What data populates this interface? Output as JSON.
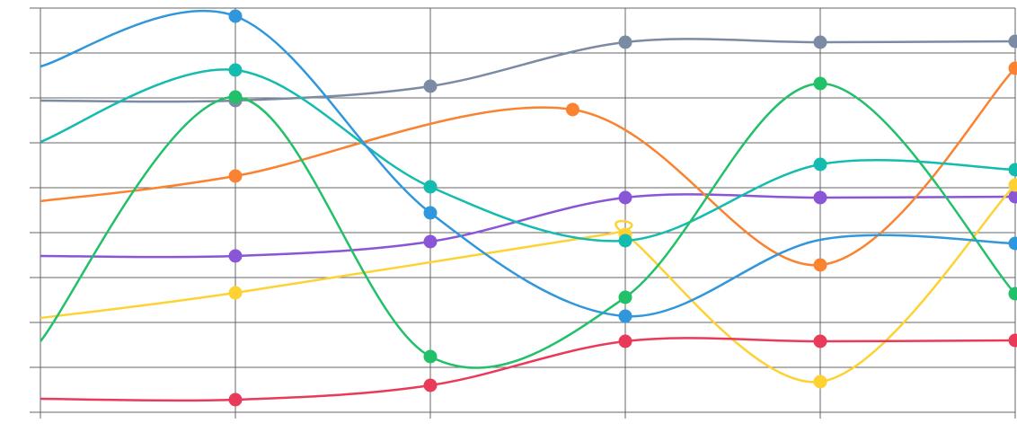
{
  "chart_data": {
    "type": "line",
    "title": "",
    "xlabel": "",
    "ylabel": "",
    "xlim": [
      0,
      5
    ],
    "ylim": [
      0,
      9
    ],
    "grid": true,
    "legend": "none",
    "x_ticks": [
      0,
      1,
      2,
      3,
      4,
      5
    ],
    "y_ticks": [
      0,
      1,
      2,
      3,
      4,
      5,
      6,
      7,
      8,
      9
    ],
    "series": [
      {
        "name": "gray",
        "color": "#7a8ba3",
        "points": [
          [
            0,
            6.94,
            false
          ],
          [
            1,
            6.94,
            true
          ],
          [
            2,
            7.26,
            true
          ],
          [
            3,
            8.24,
            true
          ],
          [
            4,
            8.24,
            true
          ],
          [
            5,
            8.26,
            true
          ]
        ]
      },
      {
        "name": "purple",
        "color": "#8a55d6",
        "points": [
          [
            0,
            3.48,
            false
          ],
          [
            1,
            3.48,
            true
          ],
          [
            2,
            3.8,
            true
          ],
          [
            3,
            4.78,
            true
          ],
          [
            4,
            4.78,
            true
          ],
          [
            5,
            4.8,
            true
          ]
        ]
      },
      {
        "name": "yellow",
        "color": "#fdd232",
        "points": [
          [
            0,
            2.1,
            false
          ],
          [
            1,
            2.66,
            true
          ],
          [
            2.9,
            3.96,
            false
          ],
          [
            3,
            3.96,
            true
          ],
          [
            4,
            0.68,
            true
          ],
          [
            5,
            5.06,
            true
          ]
        ]
      },
      {
        "name": "red",
        "color": "#ea3a5a",
        "points": [
          [
            0,
            0.3,
            false
          ],
          [
            1,
            0.28,
            true
          ],
          [
            2,
            0.6,
            true
          ],
          [
            3,
            1.58,
            true
          ],
          [
            4,
            1.58,
            true
          ],
          [
            5,
            1.6,
            true
          ]
        ]
      },
      {
        "name": "orange",
        "color": "#fb8230",
        "points": [
          [
            0,
            4.7,
            false
          ],
          [
            1,
            5.26,
            true
          ],
          [
            2.73,
            6.74,
            true
          ],
          [
            4,
            3.28,
            true
          ],
          [
            5,
            7.66,
            true
          ]
        ]
      },
      {
        "name": "teal",
        "color": "#14bbaf",
        "points": [
          [
            0,
            6.02,
            false
          ],
          [
            1,
            7.62,
            true
          ],
          [
            2,
            5.02,
            true
          ],
          [
            3,
            3.82,
            true
          ],
          [
            4,
            5.52,
            true
          ],
          [
            5,
            5.4,
            true
          ]
        ]
      },
      {
        "name": "green",
        "color": "#22c069",
        "points": [
          [
            0,
            1.58,
            false
          ],
          [
            1,
            7.02,
            true
          ],
          [
            2,
            1.24,
            true
          ],
          [
            3,
            2.56,
            true
          ],
          [
            4,
            7.32,
            true
          ],
          [
            5,
            2.64,
            true
          ]
        ]
      },
      {
        "name": "blue",
        "color": "#3097dc",
        "points": [
          [
            0,
            7.7,
            false
          ],
          [
            1,
            8.82,
            true
          ],
          [
            2,
            4.44,
            true
          ],
          [
            3,
            2.14,
            true
          ],
          [
            4,
            3.84,
            false
          ],
          [
            5,
            3.76,
            true
          ]
        ]
      }
    ]
  }
}
